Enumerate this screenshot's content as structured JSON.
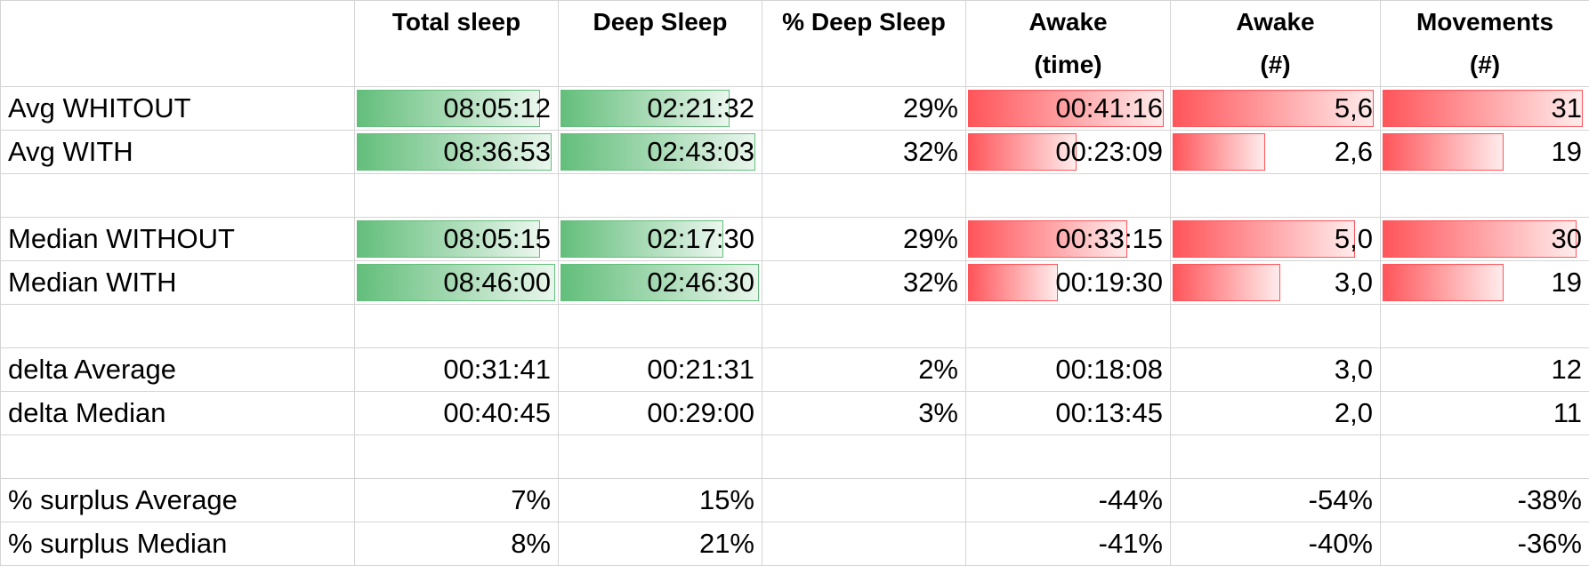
{
  "colors": {
    "good_bar": "#63be7b",
    "bad_bar": "#ff555a",
    "grid": "#d4d4d4"
  },
  "headers": {
    "label": "",
    "total_sleep": "Total sleep",
    "deep_sleep": "Deep Sleep",
    "pct_deep": "% Deep Sleep",
    "awake_time_1": "Awake",
    "awake_time_2": "(time)",
    "awake_num_1": "Awake",
    "awake_num_2": "(#)",
    "movements_1": "Movements",
    "movements_2": "(#)"
  },
  "rows": [
    {
      "label": "Avg WHITOUT",
      "total_sleep": "08:05:12",
      "deep_sleep": "02:21:32",
      "pct_deep": "29%",
      "awake_time": "00:41:16",
      "awake_num": "5,6",
      "movements": "31",
      "bars": {
        "total_sleep": 0.92,
        "deep_sleep": 0.85,
        "awake_time": 0.98,
        "awake_num": 0.98,
        "movements": 0.98
      }
    },
    {
      "label": "Avg WITH",
      "total_sleep": "08:36:53",
      "deep_sleep": "02:43:03",
      "pct_deep": "32%",
      "awake_time": "00:23:09",
      "awake_num": "2,6",
      "movements": "19",
      "bars": {
        "total_sleep": 0.98,
        "deep_sleep": 0.98,
        "awake_time": 0.55,
        "awake_num": 0.46,
        "movements": 0.6
      }
    },
    {
      "label": "",
      "total_sleep": "",
      "deep_sleep": "",
      "pct_deep": "",
      "awake_time": "",
      "awake_num": "",
      "movements": ""
    },
    {
      "label": "Median WITHOUT",
      "total_sleep": "08:05:15",
      "deep_sleep": "02:17:30",
      "pct_deep": "29%",
      "awake_time": "00:33:15",
      "awake_num": "5,0",
      "movements": "30",
      "bars": {
        "total_sleep": 0.92,
        "deep_sleep": 0.82,
        "awake_time": 0.8,
        "awake_num": 0.89,
        "movements": 0.95
      }
    },
    {
      "label": "Median WITH",
      "total_sleep": "08:46:00",
      "deep_sleep": "02:46:30",
      "pct_deep": "32%",
      "awake_time": "00:19:30",
      "awake_num": "3,0",
      "movements": "19",
      "bars": {
        "total_sleep": 0.995,
        "deep_sleep": 0.995,
        "awake_time": 0.46,
        "awake_num": 0.53,
        "movements": 0.6
      }
    },
    {
      "label": "",
      "total_sleep": "",
      "deep_sleep": "",
      "pct_deep": "",
      "awake_time": "",
      "awake_num": "",
      "movements": ""
    },
    {
      "label": "delta Average",
      "total_sleep": "00:31:41",
      "deep_sleep": "00:21:31",
      "pct_deep": "2%",
      "awake_time": "00:18:08",
      "awake_num": "3,0",
      "movements": "12"
    },
    {
      "label": "delta Median",
      "total_sleep": "00:40:45",
      "deep_sleep": "00:29:00",
      "pct_deep": "3%",
      "awake_time": "00:13:45",
      "awake_num": "2,0",
      "movements": "11"
    },
    {
      "label": "",
      "total_sleep": "",
      "deep_sleep": "",
      "pct_deep": "",
      "awake_time": "",
      "awake_num": "",
      "movements": ""
    },
    {
      "label": "% surplus Average",
      "total_sleep": "7%",
      "deep_sleep": "15%",
      "pct_deep": "",
      "awake_time": "-44%",
      "awake_num": "-54%",
      "movements": "-38%"
    },
    {
      "label": "% surplus Median",
      "total_sleep": "8%",
      "deep_sleep": "21%",
      "pct_deep": "",
      "awake_time": "-41%",
      "awake_num": "-40%",
      "movements": "-36%"
    }
  ]
}
